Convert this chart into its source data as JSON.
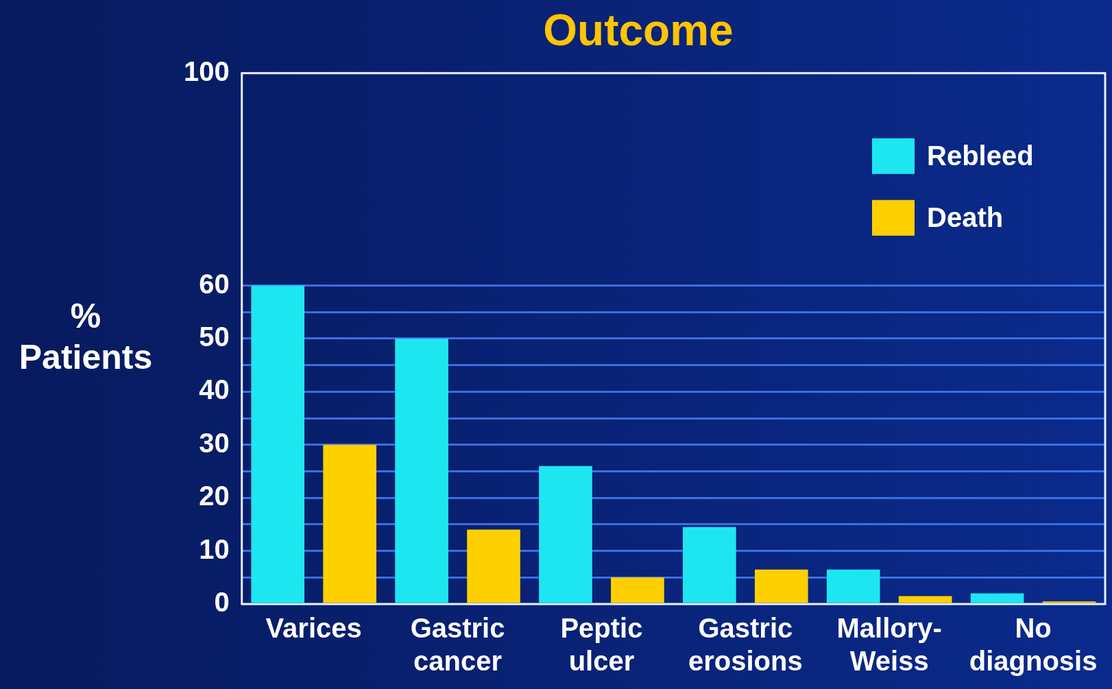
{
  "chart_data": {
    "type": "bar",
    "title": "Outcome",
    "ylabel": "% Patients",
    "categories": [
      "Varices",
      "Gastric cancer",
      "Peptic ulcer",
      "Gastric erosions",
      "Mallory-Weiss",
      "No diagnosis"
    ],
    "series": [
      {
        "name": "Rebleed",
        "color": "#1ee6f0",
        "values": [
          60,
          50,
          26,
          14.5,
          6.5,
          2
        ]
      },
      {
        "name": "Death",
        "color": "#ffd000",
        "values": [
          30,
          14,
          5,
          6.5,
          1.5,
          0.5
        ]
      }
    ],
    "ylim": [
      0,
      100
    ],
    "yticks": [
      0,
      {
        "value": 5,
        "label": null
      },
      10,
      {
        "value": 15,
        "label": null
      },
      20,
      {
        "value": 25,
        "label": null
      },
      30,
      {
        "value": 35,
        "label": null
      },
      40,
      {
        "value": 45,
        "label": null
      },
      50,
      {
        "value": 55,
        "label": null
      },
      60,
      100
    ],
    "grid": "y",
    "legend": "top right"
  }
}
